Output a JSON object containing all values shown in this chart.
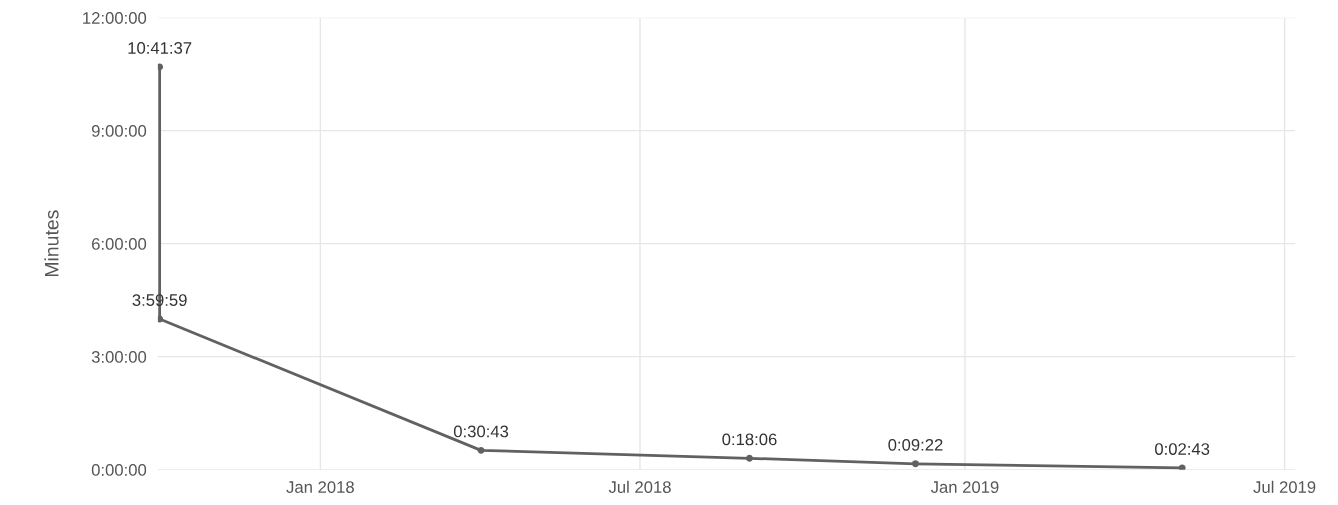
{
  "chart_data": {
    "type": "line",
    "ylabel": "Minutes",
    "x": [
      "2017-10-02",
      "2017-10-02",
      "2018-04-02",
      "2018-09-01",
      "2018-12-04",
      "2019-05-04"
    ],
    "series": [
      {
        "color": "#616161",
        "values": [
          10.6936,
          3.9997,
          0.5119,
          0.3017,
          0.1561,
          0.0453
        ],
        "value_labels": [
          "10:41:37",
          "3:59:59",
          "0:30:43",
          "0:18:06",
          "0:09:22",
          "0:02:43"
        ]
      }
    ],
    "xlim": [
      "2017-10-01",
      "2019-07-07"
    ],
    "xticks": [
      {
        "value": "2018-01-01",
        "label": "Jan 2018"
      },
      {
        "value": "2018-07-01",
        "label": "Jul 2018"
      },
      {
        "value": "2019-01-01",
        "label": "Jan 2019"
      },
      {
        "value": "2019-07-01",
        "label": "Jul 2019"
      }
    ],
    "ylim": [
      0,
      12
    ],
    "yticks": [
      {
        "value": 0,
        "label": "0:00:00"
      },
      {
        "value": 3,
        "label": "3:00:00"
      },
      {
        "value": 6,
        "label": "6:00:00"
      },
      {
        "value": 9,
        "label": "9:00:00"
      },
      {
        "value": 12,
        "label": "12:00:00"
      }
    ],
    "grid": true,
    "marker": "circle",
    "line_style": "solid"
  }
}
